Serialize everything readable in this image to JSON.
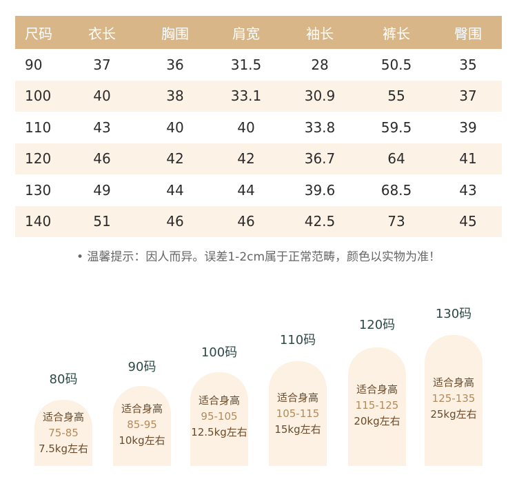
{
  "table": {
    "headers": [
      "尺码",
      "衣长",
      "胸围",
      "肩宽",
      "袖长",
      "裤长",
      "臀围"
    ],
    "rows": [
      [
        "90",
        "37",
        "36",
        "31.5",
        "28",
        "50.5",
        "35"
      ],
      [
        "100",
        "40",
        "38",
        "33.1",
        "30.9",
        "55",
        "37"
      ],
      [
        "110",
        "43",
        "40",
        "40",
        "33.8",
        "59.5",
        "39"
      ],
      [
        "120",
        "46",
        "42",
        "42",
        "36.7",
        "64",
        "41"
      ],
      [
        "130",
        "49",
        "44",
        "44",
        "39.6",
        "68.5",
        "43"
      ],
      [
        "140",
        "51",
        "46",
        "46",
        "42.5",
        "73",
        "45"
      ]
    ]
  },
  "tip": "• 温馨提示：因人而异。误差1-2cm属于正常范畴，颜色以实物为准！",
  "sizes": [
    {
      "label": "80码",
      "title": "适合身高",
      "height": "75-85",
      "weight": "7.5kg左右"
    },
    {
      "label": "90码",
      "title": "适合身高",
      "height": "85-95",
      "weight": "10kg左右"
    },
    {
      "label": "100码",
      "title": "适合身高",
      "height": "95-105",
      "weight": "12.5kg左右"
    },
    {
      "label": "110码",
      "title": "适合身高",
      "height": "105-115",
      "weight": "15kg左右"
    },
    {
      "label": "120码",
      "title": "适合身高",
      "height": "115-125",
      "weight": "20kg左右"
    },
    {
      "label": "130码",
      "title": "适合身高",
      "height": "125-135",
      "weight": "25kg左右"
    }
  ],
  "colors": {
    "header_bg": "#d8b688",
    "row_shade": "#fcf3e6",
    "pill_bg": "#fcf1e2",
    "size_label": "#2d4a46"
  }
}
